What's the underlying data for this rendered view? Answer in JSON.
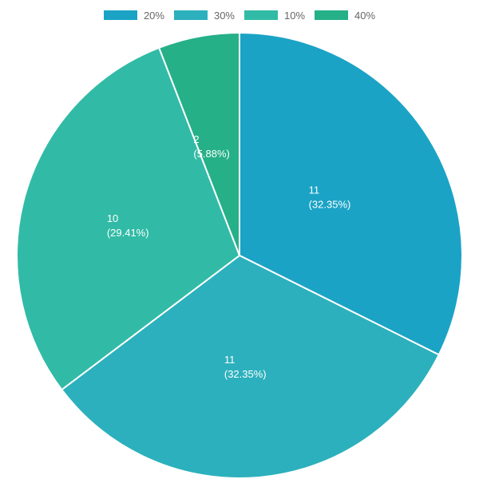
{
  "chart_data": {
    "type": "pie",
    "categories": [
      "20%",
      "30%",
      "10%",
      "40%"
    ],
    "values": [
      11,
      11,
      10,
      2
    ],
    "percentages": [
      "32.35%",
      "32.35%",
      "29.41%",
      "5.88%"
    ],
    "colors": [
      "#1ba3c6",
      "#2cb0bd",
      "#31bba6",
      "#25b088"
    ],
    "legend_position": "top",
    "slice_border_color": "#ffffff",
    "label_color": "#ffffff"
  }
}
